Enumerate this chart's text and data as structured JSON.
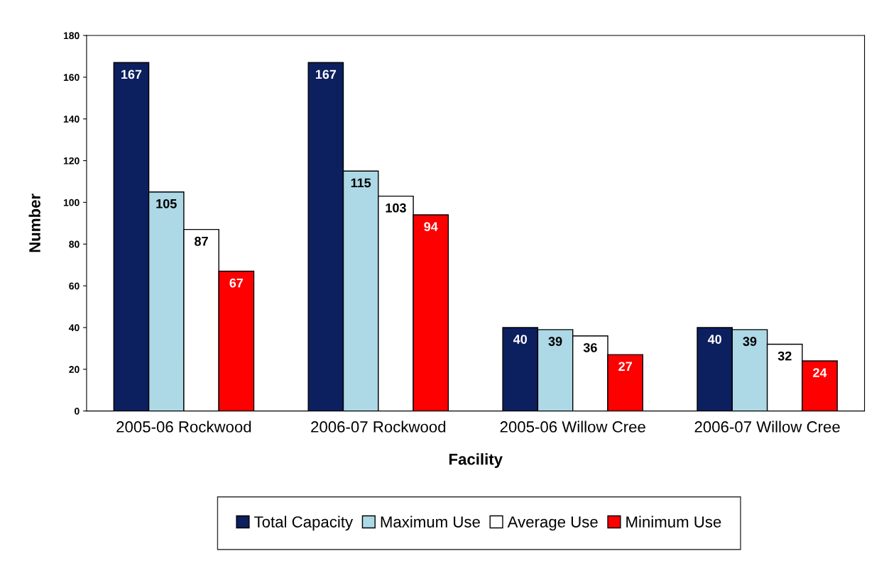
{
  "chart_data": {
    "type": "bar",
    "xlabel": "Facility",
    "ylabel": "Number",
    "categories": [
      "2005-06 Rockwood",
      "2006-07 Rockwood",
      "2005-06 Willow Cree",
      "2006-07 Willow Cree"
    ],
    "series": [
      {
        "name": "Total Capacity",
        "color": "#0c1f5e",
        "values": [
          167,
          167,
          40,
          40
        ]
      },
      {
        "name": "Maximum Use",
        "color": "#add8e6",
        "values": [
          105,
          115,
          39,
          39
        ]
      },
      {
        "name": "Average Use",
        "color": "#ffffff",
        "values": [
          87,
          103,
          36,
          32
        ]
      },
      {
        "name": "Minimum Use",
        "color": "#ff0000",
        "values": [
          67,
          94,
          27,
          24
        ]
      }
    ],
    "ylim": [
      0,
      180
    ],
    "yticks": [
      0,
      20,
      40,
      60,
      80,
      100,
      120,
      140,
      160,
      180
    ],
    "data_labels": true,
    "grid": false,
    "legend": "bottom"
  }
}
